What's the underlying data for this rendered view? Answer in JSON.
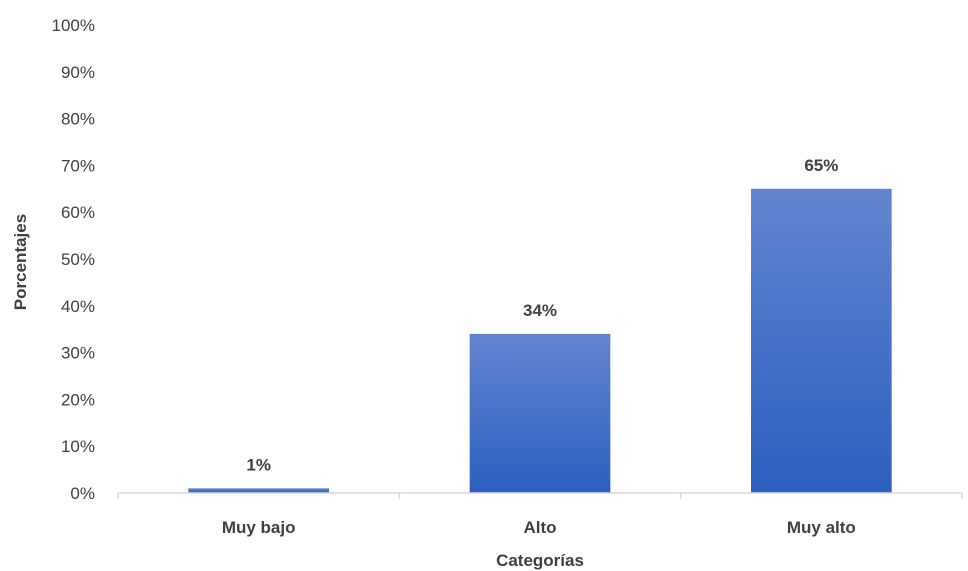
{
  "chart_data": {
    "type": "bar",
    "title": "",
    "categories": [
      "Muy bajo",
      "Alto",
      "Muy alto"
    ],
    "values": [
      1,
      34,
      65
    ],
    "value_labels": [
      "1%",
      "34%",
      "65%"
    ],
    "xlabel": "Categorías",
    "ylabel": "Porcentajes",
    "ylim": [
      0,
      100
    ],
    "yticks": [
      0,
      10,
      20,
      30,
      40,
      50,
      60,
      70,
      80,
      90,
      100
    ],
    "ytick_labels": [
      "0%",
      "10%",
      "20%",
      "30%",
      "40%",
      "50%",
      "60%",
      "70%",
      "80%",
      "90%",
      "100%"
    ],
    "grid": false,
    "legend": "none",
    "colors": {
      "bar_top": "#6285cf",
      "bar_bottom": "#2c5fbf",
      "axis": "#d9d9d9",
      "text": "#404040"
    }
  }
}
